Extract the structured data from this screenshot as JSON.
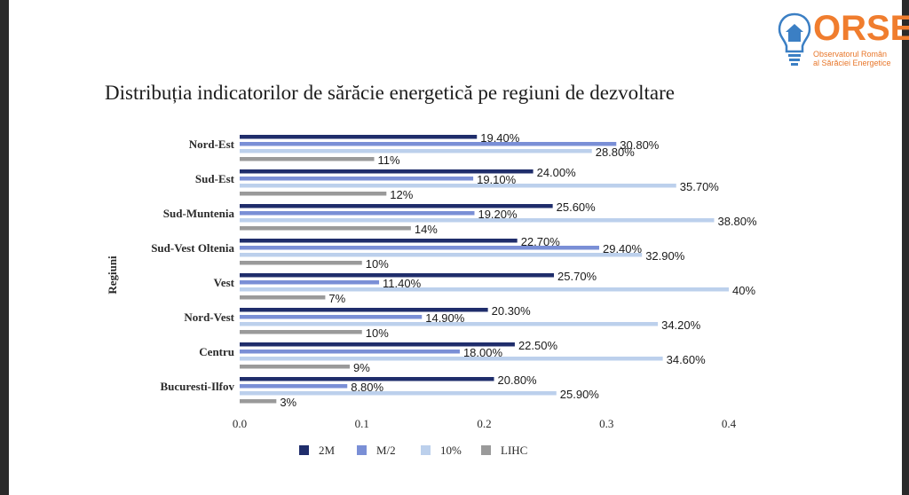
{
  "brand": {
    "name": "ORSE",
    "subtitle_line1": "Observatorul Român",
    "subtitle_line2": "al Sărăciei Energetice",
    "color": "#f07d2e",
    "icon": "lightbulb-house-icon"
  },
  "chart_data": {
    "type": "bar",
    "orientation": "horizontal",
    "title": "Distribuția indicatorilor de sărăcie energetică pe regiuni de dezvoltare",
    "ylabel": "Regiuni",
    "xlabel": "",
    "xlim": [
      0,
      0.4
    ],
    "xticks": [
      "0.0",
      "0.1",
      "0.2",
      "0.3",
      "0.4"
    ],
    "grid": false,
    "legend_position": "bottom",
    "categories": [
      "Nord-Est",
      "Sud-Est",
      "Sud-Muntenia",
      "Sud-Vest Oltenia",
      "Vest",
      "Nord-Vest",
      "Centru",
      "Bucuresti-Ilfov"
    ],
    "series": [
      {
        "name": "2M",
        "color": "#1f2d6b",
        "values": [
          0.194,
          0.24,
          0.256,
          0.227,
          0.257,
          0.203,
          0.225,
          0.208
        ],
        "labels": [
          "19.40%",
          "24.00%",
          "25.60%",
          "22.70%",
          "25.70%",
          "20.30%",
          "22.50%",
          "20.80%"
        ]
      },
      {
        "name": "M/2",
        "color": "#7a8fd6",
        "values": [
          0.308,
          0.191,
          0.192,
          0.294,
          0.114,
          0.149,
          0.18,
          0.088
        ],
        "labels": [
          "30.80%",
          "19.10%",
          "19.20%",
          "29.40%",
          "11.40%",
          "14.90%",
          "18.00%",
          "8.80%"
        ]
      },
      {
        "name": "10%",
        "color": "#bcd0ec",
        "values": [
          0.288,
          0.357,
          0.388,
          0.329,
          0.4,
          0.342,
          0.346,
          0.259
        ],
        "labels": [
          "28.80%",
          "35.70%",
          "38.80%",
          "32.90%",
          "40%",
          "34.20%",
          "34.60%",
          "25.90%"
        ]
      },
      {
        "name": "LIHC",
        "color": "#9a9a9a",
        "values": [
          0.11,
          0.12,
          0.14,
          0.1,
          0.07,
          0.1,
          0.09,
          0.03
        ],
        "labels": [
          "11%",
          "12%",
          "14%",
          "10%",
          "7%",
          "10%",
          "9%",
          "3%"
        ]
      }
    ]
  }
}
